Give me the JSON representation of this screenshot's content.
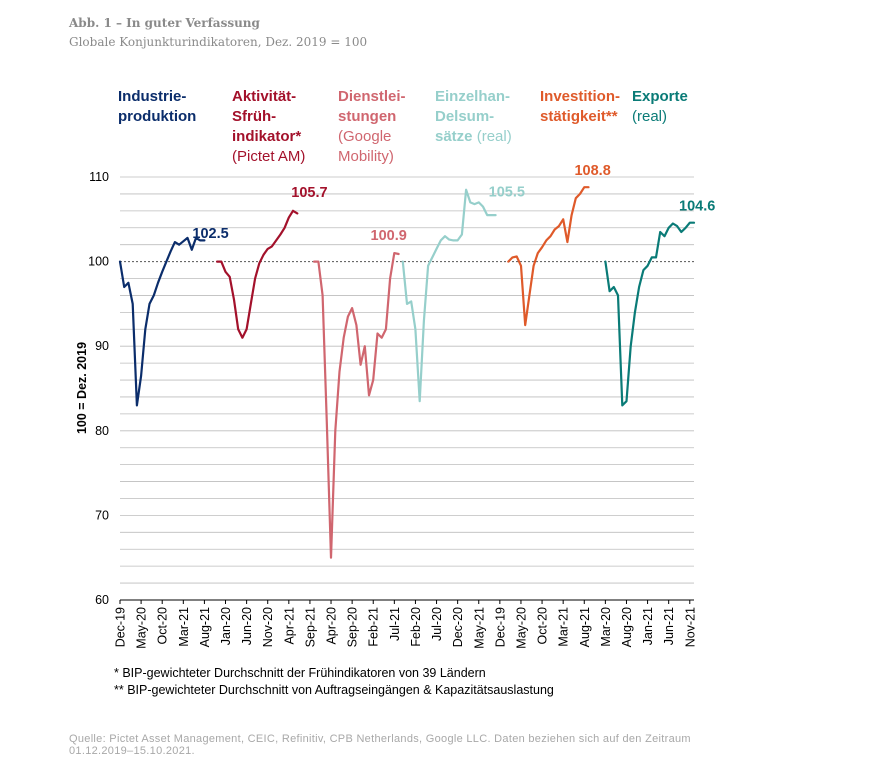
{
  "figure": {
    "title": "Abb. 1 – In guter Verfassung",
    "subtitle": "Globale Konjunkturindikatoren, Dez. 2019 = 100"
  },
  "headers": [
    {
      "bold": [
        "Industrie-",
        "produktion"
      ],
      "normal": []
    },
    {
      "bold": [
        "Aktivität-",
        "Sfrüh-",
        "indikator*"
      ],
      "normal": [
        "(Pictet AM)"
      ]
    },
    {
      "bold": [
        "Dienstlei-",
        "stungen"
      ],
      "normal": [
        "(Google",
        "Mobility)"
      ]
    },
    {
      "bold": [
        "Einzelhan-",
        "Delsum-",
        "sätze"
      ],
      "normal": [],
      "suffix": " (real)"
    },
    {
      "bold": [
        "Investition-",
        "stätigkeit**"
      ],
      "normal": []
    },
    {
      "bold": [
        "Exporte"
      ],
      "normal": [
        "(real)"
      ]
    }
  ],
  "footnotes": [
    "* BIP-gewichteter Durchschnitt der Frühindikatoren von 39 Ländern",
    "** BIP-gewichteter Durchschnitt von Auftragseingängen & Kapazitätsauslastung"
  ],
  "source": "Quelle: Pictet Asset Management, CEIC, Refinitiv, CPB Netherlands, Google LLC. Daten beziehen sich auf den Zeitraum 01.12.2019–15.10.2021.",
  "chart_data": {
    "type": "line",
    "title": "Globale Konjunkturindikatoren, Dez. 2019 = 100",
    "xlabel": "",
    "ylabel": "100 = Dez. 2019",
    "ylim": [
      60,
      110
    ],
    "yticks": [
      60,
      70,
      80,
      90,
      100,
      110
    ],
    "reference_line": 100,
    "grid": true,
    "x_tick_labels": [
      "Dec-19",
      "May-20",
      "Oct-20",
      "Mar-21",
      "Aug-21",
      "Jan-20",
      "Jun-20",
      "Nov-20",
      "Apr-21",
      "Sep-21",
      "Apr-20",
      "Sep-20",
      "Feb-21",
      "Jul-21",
      "Feb-20",
      "Jul-20",
      "Dec-20",
      "May-21",
      "Dec-19",
      "May-20",
      "Oct-20",
      "Mar-21",
      "Aug-21",
      "Mar-20",
      "Aug-20",
      "Jan-21",
      "Jun-21",
      "Nov-21"
    ],
    "series": [
      {
        "name": "Industrieproduktion",
        "color": "#0b2d6b",
        "end_label": "102.5",
        "x": [
          0,
          1,
          2,
          3,
          4,
          5,
          6,
          7,
          8,
          9,
          10,
          11,
          12,
          13,
          14,
          15,
          16,
          17,
          18,
          19,
          20
        ],
        "values": [
          100,
          97.0,
          97.5,
          95.0,
          83.0,
          86.5,
          92.0,
          95.0,
          96.0,
          97.5,
          98.8,
          100.0,
          101.2,
          102.3,
          102.0,
          102.4,
          102.8,
          101.4,
          102.8,
          102.5,
          102.5
        ]
      },
      {
        "name": "Aktivitätsfrühindikator*",
        "color": "#a3112b",
        "end_label": "105.7",
        "x": [
          23,
          24,
          25,
          26,
          27,
          28,
          29,
          30,
          31,
          32,
          33,
          34,
          35,
          36,
          37,
          38,
          39,
          40,
          41,
          42
        ],
        "values": [
          100,
          100,
          98.8,
          98.2,
          95.5,
          92.0,
          91.0,
          92.0,
          95.0,
          98.0,
          99.8,
          100.8,
          101.5,
          101.8,
          102.5,
          103.2,
          104.0,
          105.2,
          106.0,
          105.7
        ]
      },
      {
        "name": "Dienstleistungen (Google Mobility)",
        "color": "#d0666f",
        "end_label": "100.9",
        "x": [
          46,
          47,
          48,
          49,
          50,
          51,
          52,
          53,
          54,
          55,
          56,
          57,
          58,
          59,
          60,
          61,
          62,
          63,
          64,
          65,
          66
        ],
        "values": [
          100,
          100,
          96.0,
          81.0,
          65.0,
          80.0,
          87.0,
          91.0,
          93.5,
          94.5,
          92.5,
          87.8,
          90.0,
          84.2,
          86.0,
          91.5,
          91.0,
          92.0,
          98.0,
          101.0,
          100.9
        ]
      },
      {
        "name": "Einzelhandelsumsätze (real)",
        "color": "#96cfcb",
        "end_label": "105.5",
        "x": [
          67,
          68,
          69,
          70,
          71,
          72,
          73,
          74,
          75,
          76,
          77,
          78,
          79,
          80,
          81,
          82,
          83,
          84,
          85,
          86,
          87,
          88,
          89
        ],
        "values": [
          100,
          95.0,
          95.3,
          92.0,
          83.5,
          93.0,
          99.5,
          100.5,
          101.5,
          102.5,
          103.0,
          102.6,
          102.5,
          102.5,
          103.2,
          108.5,
          107.0,
          106.8,
          107.0,
          106.5,
          105.5,
          105.5,
          105.5
        ]
      },
      {
        "name": "Investitionstätigkeit**",
        "color": "#df5a2a",
        "end_label": "108.8",
        "x": [
          92,
          93,
          94,
          95,
          96,
          97,
          98,
          99,
          100,
          101,
          102,
          103,
          104,
          105,
          106,
          107,
          108,
          109,
          110,
          111
        ],
        "values": [
          100,
          100.5,
          100.6,
          99.5,
          92.5,
          96.0,
          99.5,
          101.0,
          101.7,
          102.5,
          103.0,
          103.8,
          104.2,
          105.0,
          102.3,
          105.5,
          107.5,
          108.0,
          108.8,
          108.8
        ]
      },
      {
        "name": "Exporte (real)",
        "color": "#0a7b77",
        "end_label": "104.6",
        "x": [
          115,
          116,
          117,
          118,
          119,
          120,
          121,
          122,
          123,
          124,
          125,
          126,
          127,
          128,
          129,
          130,
          131,
          132,
          133,
          134,
          135,
          136
        ],
        "values": [
          100,
          96.5,
          97.0,
          96.0,
          83.0,
          83.5,
          90.0,
          94.0,
          97.0,
          99.0,
          99.5,
          100.5,
          100.5,
          103.5,
          103.0,
          104.0,
          104.5,
          104.2,
          103.5,
          104.0,
          104.6,
          104.6
        ]
      }
    ]
  }
}
